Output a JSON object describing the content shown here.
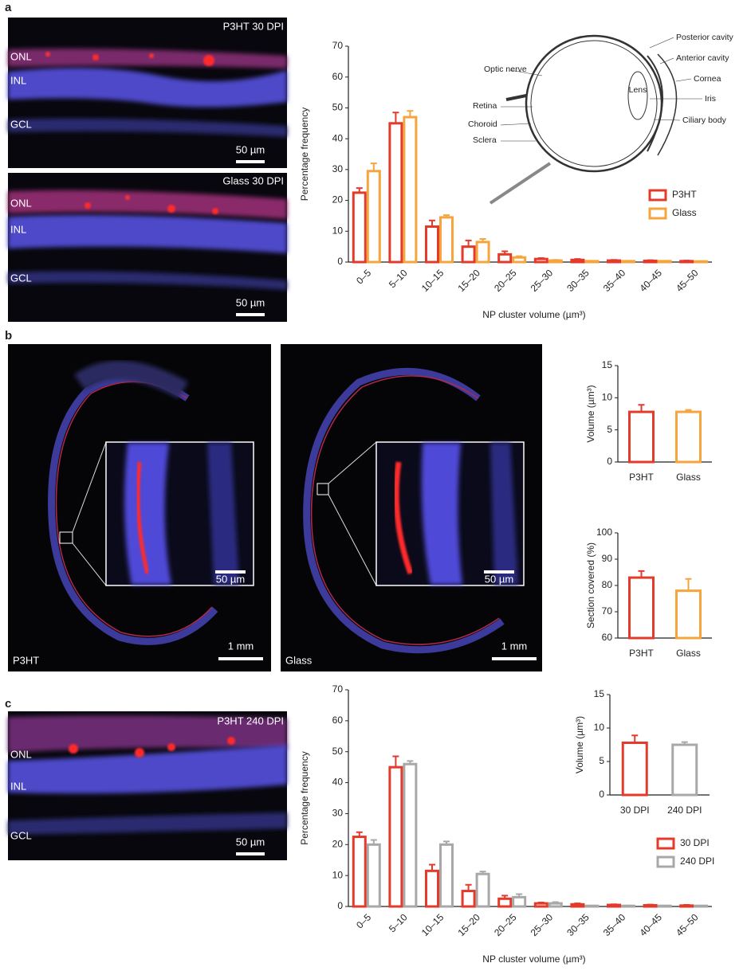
{
  "panel_labels": [
    "a",
    "b",
    "c"
  ],
  "micrographs": [
    {
      "title": "P3HT 30 DPI",
      "layers": [
        "ONL",
        "INL",
        "GCL"
      ],
      "scale_bar": "50 µm"
    },
    {
      "title": "Glass 30 DPI",
      "layers": [
        "ONL",
        "INL",
        "GCL"
      ],
      "scale_bar": "50 µm"
    },
    {
      "title": "P3HT",
      "inset_scale_bar": "50 µm",
      "scale_bar": "1 mm"
    },
    {
      "title": "Glass",
      "inset_scale_bar": "50 µm",
      "scale_bar": "1 mm"
    },
    {
      "title": "P3HT 240 DPI",
      "layers": [
        "ONL",
        "INL",
        "GCL"
      ],
      "scale_bar": "50 µm"
    }
  ],
  "eye_diagram": [
    "Posterior cavity",
    "Anterior cavity",
    "Cornea",
    "Iris",
    "Ciliary body",
    "Optic nerve",
    "Lens",
    "Retina",
    "Choroid",
    "Sclera"
  ],
  "chart_data": [
    {
      "type": "bar",
      "ylabel": "Percentage frequency",
      "xlabel": "NP cluster volume (µm³)",
      "categories": [
        "0–5",
        "5–10",
        "10–15",
        "15–20",
        "20–25",
        "25–30",
        "30–35",
        "35–40",
        "40–45",
        "45–50"
      ],
      "series": [
        {
          "name": "P3HT",
          "color": "#e43a2b",
          "values": [
            22.5,
            45,
            11.5,
            5,
            2.5,
            1,
            0.7,
            0.5,
            0.4,
            0.3
          ],
          "errors": [
            1.5,
            3.5,
            2,
            2,
            1,
            0.3,
            0.3,
            0.2,
            0.2,
            0.2
          ]
        },
        {
          "name": "Glass",
          "color": "#f6a43c",
          "values": [
            29.5,
            47,
            14.5,
            6.5,
            1.5,
            0.5,
            0.3,
            0.3,
            0.3,
            0.2
          ],
          "errors": [
            2.5,
            2,
            0.7,
            1,
            0.4,
            0.2,
            0.1,
            0.1,
            0.1,
            0.1
          ]
        }
      ],
      "ylim": [
        0,
        70
      ],
      "yticks": [
        0,
        10,
        20,
        30,
        40,
        50,
        60,
        70
      ]
    },
    {
      "type": "bar",
      "ylabel": "Volume (µm³)",
      "categories": [
        "P3HT",
        "Glass"
      ],
      "values": [
        7.8,
        7.8
      ],
      "errors": [
        1.1,
        0.3
      ],
      "colors": [
        "#e43a2b",
        "#f6a43c"
      ],
      "ylim": [
        0,
        15
      ],
      "yticks": [
        0,
        5,
        10,
        15
      ]
    },
    {
      "type": "bar",
      "ylabel": "Section covered (%)",
      "categories": [
        "P3HT",
        "Glass"
      ],
      "values": [
        83,
        78
      ],
      "errors": [
        2.5,
        4.5
      ],
      "colors": [
        "#e43a2b",
        "#f6a43c"
      ],
      "ylim": [
        60,
        100
      ],
      "yticks": [
        60,
        70,
        80,
        90,
        100
      ]
    },
    {
      "type": "bar",
      "ylabel": "Percentage frequency",
      "xlabel": "NP cluster volume (µm³)",
      "categories": [
        "0–5",
        "5–10",
        "10–15",
        "15–20",
        "20–25",
        "25–30",
        "30–35",
        "35–40",
        "40–45",
        "45–50"
      ],
      "series": [
        {
          "name": "30 DPI",
          "color": "#e43a2b",
          "values": [
            22.5,
            45,
            11.5,
            5,
            2.5,
            1,
            0.7,
            0.5,
            0.4,
            0.3
          ],
          "errors": [
            1.5,
            3.5,
            2,
            2,
            1,
            0.3,
            0.3,
            0.2,
            0.2,
            0.2
          ]
        },
        {
          "name": "240 DPI",
          "color": "#a8a8a8",
          "values": [
            20,
            46,
            20,
            10.5,
            3,
            1,
            0.2,
            0.2,
            0.2,
            0.2
          ],
          "errors": [
            1.5,
            1,
            1,
            0.8,
            1,
            0.4,
            0.1,
            0.1,
            0.1,
            0.1
          ]
        }
      ],
      "ylim": [
        0,
        70
      ],
      "yticks": [
        0,
        10,
        20,
        30,
        40,
        50,
        60,
        70
      ]
    },
    {
      "type": "bar",
      "ylabel": "Volume (µm³)",
      "categories": [
        "30 DPI",
        "240 DPI"
      ],
      "values": [
        7.8,
        7.5
      ],
      "errors": [
        1.1,
        0.4
      ],
      "colors": [
        "#e43a2b",
        "#a8a8a8"
      ],
      "ylim": [
        0,
        15
      ],
      "yticks": [
        0,
        5,
        10,
        15
      ]
    }
  ]
}
